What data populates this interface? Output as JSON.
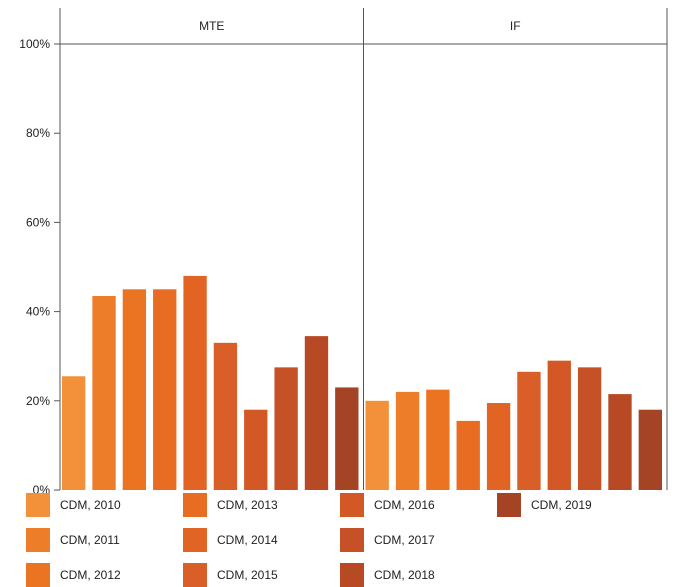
{
  "chart_data": {
    "type": "bar",
    "panels": [
      "MTE",
      "IF"
    ],
    "y_ticks": [
      "0%",
      "20%",
      "40%",
      "60%",
      "80%",
      "100%"
    ],
    "ylim": [
      0,
      100
    ],
    "series": [
      {
        "name": "CDM, 2010",
        "color": "#f2913a",
        "values": [
          25.5,
          20
        ]
      },
      {
        "name": "CDM, 2011",
        "color": "#ee7d2a",
        "values": [
          43.5,
          22
        ]
      },
      {
        "name": "CDM, 2012",
        "color": "#eb7422",
        "values": [
          45,
          22.5
        ]
      },
      {
        "name": "CDM, 2013",
        "color": "#e86c22",
        "values": [
          45,
          15.5
        ]
      },
      {
        "name": "CDM, 2014",
        "color": "#e16424",
        "values": [
          48,
          19.5
        ]
      },
      {
        "name": "CDM, 2015",
        "color": "#d95e27",
        "values": [
          33,
          26.5
        ]
      },
      {
        "name": "CDM, 2016",
        "color": "#d35826",
        "values": [
          18,
          29
        ]
      },
      {
        "name": "CDM, 2017",
        "color": "#c65127",
        "values": [
          27.5,
          27.5
        ]
      },
      {
        "name": "CDM, 2018",
        "color": "#b84925",
        "values": [
          34.5,
          21.5
        ]
      },
      {
        "name": "CDM, 2019",
        "color": "#a54424",
        "values": [
          23,
          18
        ]
      }
    ],
    "grid": false,
    "legend_position": "bottom"
  }
}
